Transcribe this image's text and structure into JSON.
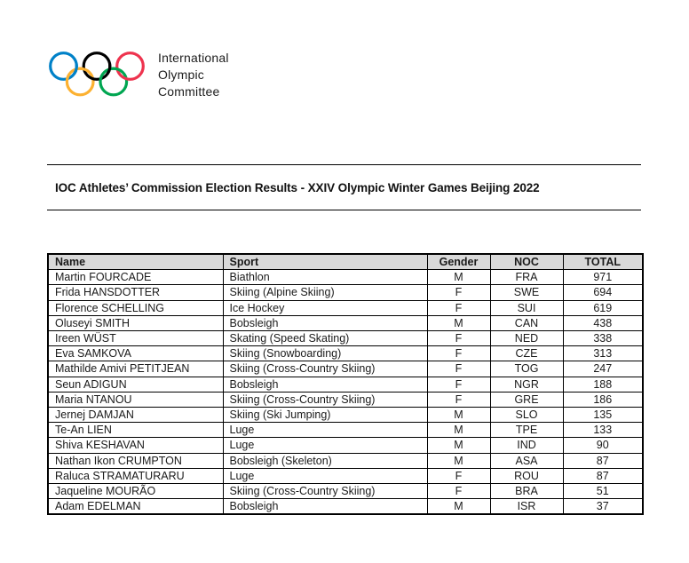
{
  "logo": {
    "org_name_lines": [
      "International",
      "Olympic",
      "Committee"
    ],
    "ring_colors": {
      "blue": "#0081C8",
      "yellow": "#FCB131",
      "black": "#000000",
      "green": "#00A651",
      "red": "#EE334E"
    }
  },
  "title": "IOC Athletes’ Commission Election Results - XXIV Olympic Winter Games Beijing 2022",
  "table": {
    "columns": [
      "Name",
      "Sport",
      "Gender",
      "NOC",
      "TOTAL"
    ],
    "rows": [
      {
        "name": "Martin FOURCADE",
        "sport": "Biathlon",
        "gender": "M",
        "noc": "FRA",
        "total": "971"
      },
      {
        "name": "Frida HANSDOTTER",
        "sport": "Skiing (Alpine Skiing)",
        "gender": "F",
        "noc": "SWE",
        "total": "694"
      },
      {
        "name": "Florence SCHELLING",
        "sport": "Ice Hockey",
        "gender": "F",
        "noc": "SUI",
        "total": "619"
      },
      {
        "name": "Oluseyi SMITH",
        "sport": "Bobsleigh",
        "gender": "M",
        "noc": "CAN",
        "total": "438"
      },
      {
        "name": "Ireen WÜST",
        "sport": "Skating (Speed Skating)",
        "gender": "F",
        "noc": "NED",
        "total": "338"
      },
      {
        "name": "Eva SAMKOVA",
        "sport": "Skiing (Snowboarding)",
        "gender": "F",
        "noc": "CZE",
        "total": "313"
      },
      {
        "name": "Mathilde Amivi PETITJEAN",
        "sport": "Skiing (Cross-Country Skiing)",
        "gender": "F",
        "noc": "TOG",
        "total": "247"
      },
      {
        "name": "Seun ADIGUN",
        "sport": "Bobsleigh",
        "gender": "F",
        "noc": "NGR",
        "total": "188"
      },
      {
        "name": "Maria NTANOU",
        "sport": "Skiing (Cross-Country Skiing)",
        "gender": "F",
        "noc": "GRE",
        "total": "186"
      },
      {
        "name": "Jernej DAMJAN",
        "sport": "Skiing (Ski Jumping)",
        "gender": "M",
        "noc": "SLO",
        "total": "135"
      },
      {
        "name": "Te-An LIEN",
        "sport": "Luge",
        "gender": "M",
        "noc": "TPE",
        "total": "133"
      },
      {
        "name": "Shiva KESHAVAN",
        "sport": "Luge",
        "gender": "M",
        "noc": "IND",
        "total": "90"
      },
      {
        "name": "Nathan Ikon CRUMPTON",
        "sport": "Bobsleigh (Skeleton)",
        "gender": "M",
        "noc": "ASA",
        "total": "87"
      },
      {
        "name": "Raluca STRAMATURARU",
        "sport": "Luge",
        "gender": "F",
        "noc": "ROU",
        "total": "87"
      },
      {
        "name": "Jaqueline MOURÃO",
        "sport": "Skiing (Cross-Country Skiing)",
        "gender": "F",
        "noc": "BRA",
        "total": "51"
      },
      {
        "name": "Adam EDELMAN",
        "sport": "Bobsleigh",
        "gender": "M",
        "noc": "ISR",
        "total": "37"
      }
    ]
  },
  "colors": {
    "header_bg": "#d9d9d9",
    "table_border": "#000000",
    "text": "#1a1a1a"
  }
}
